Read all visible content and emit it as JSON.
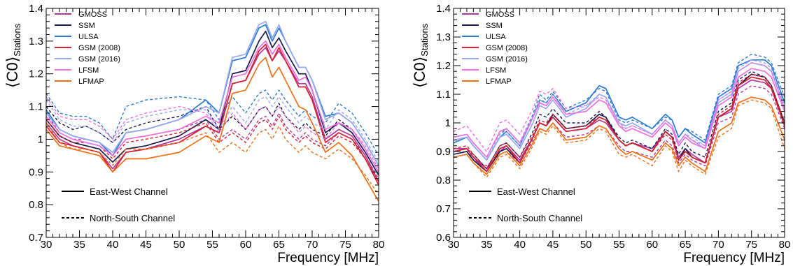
{
  "chart_data": [
    {
      "type": "line",
      "xlabel": "Frequency [MHz]",
      "ylabel": "⟨C0⟩",
      "ylabel_subscript": "Stations",
      "xlim": [
        30,
        80
      ],
      "ylim": [
        0.7,
        1.4
      ],
      "xticks": [
        "30",
        "35",
        "40",
        "45",
        "50",
        "55",
        "60",
        "65",
        "70",
        "75",
        "80"
      ],
      "yticks": [
        "0.7",
        "0.8",
        "0.9",
        "1",
        "1.1",
        "1.2",
        "1.3",
        "1.4"
      ],
      "grid": false,
      "legend": {
        "placement": "top-left",
        "entries": [
          "GMOSS",
          "SSM",
          "ULSA",
          "GSM (2008)",
          "GSM (2016)",
          "LFSM",
          "LFMAP"
        ]
      },
      "style_legend": {
        "solid": "East-West Channel",
        "dashed": "North-South Channel"
      },
      "x": [
        30,
        32,
        34,
        36,
        38,
        40,
        42,
        45,
        50,
        54,
        56,
        58,
        60,
        62,
        63,
        64,
        65,
        66,
        68,
        69,
        70,
        72,
        74,
        76,
        78,
        80
      ],
      "series": [
        {
          "name": "GMOSS",
          "color": "#b0399d",
          "ew": [
            1.05,
            1.0,
            0.98,
            0.97,
            0.96,
            0.91,
            0.96,
            0.97,
            1.0,
            1.04,
            1.02,
            1.17,
            1.18,
            1.26,
            1.28,
            1.24,
            1.27,
            1.24,
            1.17,
            1.17,
            1.13,
            1.0,
            1.03,
            1.01,
            0.95,
            0.87
          ],
          "ns": [
            1.08,
            1.02,
            1.0,
            1.0,
            0.99,
            0.95,
            1.0,
            1.01,
            1.03,
            1.06,
            1.0,
            1.03,
            1.0,
            1.06,
            1.07,
            1.04,
            1.08,
            1.04,
            1.0,
            1.02,
            1.0,
            0.98,
            1.02,
            1.0,
            0.95,
            0.88
          ]
        },
        {
          "name": "SSM",
          "color": "#1a1a4e",
          "ew": [
            1.06,
            1.01,
            0.99,
            0.98,
            0.97,
            0.93,
            0.97,
            0.98,
            1.01,
            1.06,
            1.03,
            1.2,
            1.21,
            1.3,
            1.33,
            1.28,
            1.31,
            1.27,
            1.2,
            1.2,
            1.15,
            1.02,
            1.05,
            1.02,
            0.96,
            0.89
          ],
          "ns": [
            1.1,
            1.05,
            1.03,
            1.04,
            1.02,
            0.99,
            1.03,
            1.05,
            1.07,
            1.1,
            1.03,
            1.07,
            1.03,
            1.09,
            1.1,
            1.07,
            1.11,
            1.07,
            1.03,
            1.05,
            1.03,
            1.01,
            1.06,
            1.03,
            0.97,
            0.9
          ]
        },
        {
          "name": "ULSA",
          "color": "#2a7ad6",
          "ew": [
            1.09,
            1.03,
            1.01,
            1.0,
            0.99,
            0.95,
            1.02,
            1.03,
            1.06,
            1.12,
            1.08,
            1.24,
            1.25,
            1.34,
            1.35,
            1.3,
            1.34,
            1.3,
            1.22,
            1.22,
            1.18,
            1.07,
            1.08,
            1.05,
            0.99,
            0.92
          ],
          "ns": [
            1.14,
            1.08,
            1.07,
            1.07,
            1.05,
            1.0,
            1.1,
            1.12,
            1.13,
            1.12,
            1.06,
            1.13,
            1.08,
            1.14,
            1.15,
            1.12,
            1.15,
            1.12,
            1.07,
            1.09,
            1.07,
            1.05,
            1.11,
            1.08,
            1.02,
            0.95
          ]
        },
        {
          "name": "GSM (2008)",
          "color": "#d42030",
          "ew": [
            1.04,
            0.99,
            0.98,
            0.97,
            0.96,
            0.9,
            0.96,
            0.97,
            0.99,
            1.04,
            1.02,
            1.17,
            1.18,
            1.27,
            1.29,
            1.24,
            1.28,
            1.24,
            1.16,
            1.16,
            1.12,
            0.99,
            1.02,
            1.0,
            0.94,
            0.86
          ],
          "ns": [
            1.06,
            1.01,
            0.99,
            0.99,
            0.98,
            0.94,
            0.99,
            1.0,
            1.02,
            1.05,
            0.99,
            1.02,
            0.99,
            1.05,
            1.06,
            1.03,
            1.07,
            1.03,
            0.99,
            1.01,
            0.99,
            0.97,
            1.01,
            0.99,
            0.94,
            0.87
          ]
        },
        {
          "name": "GSM (2016)",
          "color": "#9aa8f0",
          "ew": [
            1.08,
            1.03,
            1.01,
            1.0,
            0.99,
            0.96,
            1.02,
            1.03,
            1.06,
            1.1,
            1.08,
            1.25,
            1.26,
            1.35,
            1.36,
            1.31,
            1.35,
            1.3,
            1.22,
            1.22,
            1.18,
            1.06,
            1.08,
            1.05,
            0.99,
            0.92
          ],
          "ns": [
            1.12,
            1.06,
            1.04,
            1.04,
            1.02,
            0.99,
            1.05,
            1.07,
            1.09,
            1.09,
            1.03,
            1.1,
            1.05,
            1.12,
            1.13,
            1.1,
            1.13,
            1.1,
            1.05,
            1.07,
            1.05,
            1.03,
            1.09,
            1.06,
            1.0,
            0.93
          ]
        },
        {
          "name": "LFSM",
          "color": "#ee6fe0",
          "ew": [
            1.07,
            1.02,
            1.0,
            0.99,
            0.98,
            0.95,
            1.0,
            1.01,
            1.03,
            1.07,
            1.05,
            1.19,
            1.2,
            1.28,
            1.3,
            1.26,
            1.29,
            1.25,
            1.18,
            1.19,
            1.15,
            1.03,
            1.05,
            1.03,
            0.97,
            0.9
          ],
          "ns": [
            1.13,
            1.07,
            1.06,
            1.06,
            1.04,
            1.0,
            1.06,
            1.08,
            1.1,
            1.08,
            1.02,
            1.08,
            1.03,
            1.09,
            1.1,
            1.07,
            1.1,
            1.07,
            1.02,
            1.04,
            1.02,
            1.0,
            1.05,
            1.03,
            0.98,
            0.91
          ]
        },
        {
          "name": "LFMAP",
          "color": "#ee7018",
          "ew": [
            1.03,
            0.98,
            0.97,
            0.96,
            0.95,
            0.9,
            0.94,
            0.94,
            0.96,
            1.01,
            0.99,
            1.14,
            1.15,
            1.23,
            1.25,
            1.19,
            1.22,
            1.18,
            1.1,
            1.09,
            1.05,
            0.96,
            0.99,
            0.95,
            0.88,
            0.81
          ],
          "ns": [
            1.05,
            0.99,
            0.97,
            0.97,
            0.96,
            0.92,
            0.97,
            0.97,
            0.99,
            1.02,
            0.96,
            0.99,
            0.96,
            1.02,
            1.03,
            1.0,
            1.04,
            1.0,
            0.96,
            0.98,
            0.96,
            0.94,
            0.97,
            0.94,
            0.89,
            0.83
          ]
        }
      ]
    },
    {
      "type": "line",
      "xlabel": "Frequency [MHz]",
      "ylabel": "⟨C0⟩",
      "ylabel_subscript": "Stations",
      "xlim": [
        30,
        80
      ],
      "ylim": [
        0.6,
        1.4
      ],
      "xticks": [
        "30",
        "35",
        "40",
        "45",
        "50",
        "55",
        "60",
        "65",
        "70",
        "75",
        "80"
      ],
      "yticks": [
        "0.6",
        "0.7",
        "0.8",
        "0.9",
        "1",
        "1.1",
        "1.2",
        "1.3",
        "1.4"
      ],
      "grid": false,
      "legend": {
        "placement": "top-left",
        "entries": [
          "GMOSS",
          "SSM",
          "ULSA",
          "GSM (2008)",
          "GSM (2016)",
          "LFSM",
          "LFMAP"
        ]
      },
      "style_legend": {
        "solid": "East-West Channel",
        "dashed": "North-South Channel"
      },
      "x": [
        30,
        32,
        33,
        35,
        37,
        38,
        40,
        42,
        43,
        44,
        45,
        47,
        50,
        52,
        53,
        55,
        56,
        57,
        60,
        62,
        63,
        64,
        65,
        66,
        68,
        70,
        72,
        73,
        75,
        77,
        78,
        80
      ],
      "series": [
        {
          "name": "GMOSS",
          "color": "#b0399d",
          "ew": [
            0.91,
            0.91,
            0.88,
            0.84,
            0.9,
            0.92,
            0.87,
            0.95,
            1.0,
            0.99,
            1.02,
            0.97,
            0.98,
            1.01,
            1.0,
            0.94,
            0.92,
            0.93,
            0.91,
            0.97,
            0.95,
            0.88,
            0.91,
            0.89,
            0.86,
            1.02,
            1.04,
            1.12,
            1.15,
            1.14,
            1.12,
            1.0
          ],
          "ns": [
            0.9,
            0.91,
            0.87,
            0.85,
            0.89,
            0.9,
            0.86,
            0.94,
            0.98,
            0.97,
            1.0,
            0.95,
            0.96,
            0.99,
            0.98,
            0.92,
            0.9,
            0.9,
            0.88,
            0.94,
            0.92,
            0.86,
            0.89,
            0.87,
            0.85,
            1.0,
            1.02,
            1.1,
            1.13,
            1.12,
            1.1,
            0.98
          ]
        },
        {
          "name": "SSM",
          "color": "#1a1a4e",
          "ew": [
            0.89,
            0.9,
            0.87,
            0.83,
            0.9,
            0.91,
            0.86,
            0.95,
            1.0,
            0.99,
            1.03,
            0.98,
            0.99,
            1.03,
            1.02,
            0.94,
            0.92,
            0.93,
            0.9,
            0.97,
            0.95,
            0.87,
            0.91,
            0.88,
            0.86,
            1.02,
            1.05,
            1.13,
            1.17,
            1.16,
            1.13,
            1.0
          ],
          "ns": [
            0.9,
            0.91,
            0.89,
            0.84,
            0.92,
            0.93,
            0.88,
            0.97,
            1.03,
            1.02,
            1.05,
            1.0,
            1.0,
            1.04,
            1.02,
            0.95,
            0.93,
            0.94,
            0.91,
            0.98,
            0.96,
            0.89,
            0.93,
            0.9,
            0.88,
            1.04,
            1.07,
            1.15,
            1.18,
            1.16,
            1.13,
            1.0
          ]
        },
        {
          "name": "ULSA",
          "color": "#2a7ad6",
          "ew": [
            0.93,
            0.95,
            0.92,
            0.87,
            0.95,
            0.97,
            0.92,
            1.02,
            1.08,
            1.07,
            1.1,
            1.04,
            1.07,
            1.13,
            1.12,
            1.02,
            1.01,
            1.02,
            0.98,
            1.03,
            1.01,
            0.95,
            0.98,
            0.96,
            0.93,
            1.09,
            1.12,
            1.2,
            1.22,
            1.22,
            1.2,
            1.07
          ],
          "ns": [
            0.95,
            0.96,
            0.93,
            0.88,
            0.96,
            0.98,
            0.93,
            1.03,
            1.1,
            1.08,
            1.11,
            1.05,
            1.08,
            1.12,
            1.11,
            1.01,
            1.0,
            1.01,
            0.98,
            1.02,
            1.01,
            0.95,
            0.98,
            0.97,
            0.94,
            1.1,
            1.13,
            1.21,
            1.24,
            1.23,
            1.21,
            1.09
          ]
        },
        {
          "name": "GSM (2008)",
          "color": "#d42030",
          "ew": [
            0.9,
            0.91,
            0.88,
            0.83,
            0.91,
            0.92,
            0.86,
            0.95,
            1.0,
            0.99,
            1.02,
            0.97,
            0.98,
            1.02,
            1.01,
            0.94,
            0.92,
            0.93,
            0.9,
            0.97,
            0.95,
            0.87,
            0.9,
            0.88,
            0.86,
            1.02,
            1.05,
            1.13,
            1.16,
            1.15,
            1.12,
            0.99
          ],
          "ns": [
            0.91,
            0.92,
            0.89,
            0.84,
            0.92,
            0.93,
            0.88,
            0.96,
            1.01,
            1.0,
            1.03,
            0.98,
            0.99,
            1.02,
            1.01,
            0.94,
            0.92,
            0.93,
            0.9,
            0.96,
            0.94,
            0.87,
            0.9,
            0.88,
            0.86,
            1.03,
            1.06,
            1.14,
            1.17,
            1.16,
            1.13,
            1.0
          ]
        },
        {
          "name": "GSM (2016)",
          "color": "#9aa8f0",
          "ew": [
            0.94,
            0.95,
            0.92,
            0.87,
            0.95,
            0.96,
            0.91,
            1.0,
            1.06,
            1.05,
            1.08,
            1.02,
            1.05,
            1.1,
            1.09,
            1.0,
            0.99,
            1.0,
            0.96,
            1.01,
            0.99,
            0.93,
            0.96,
            0.94,
            0.91,
            1.07,
            1.1,
            1.18,
            1.21,
            1.2,
            1.18,
            1.05
          ],
          "ns": [
            0.95,
            0.96,
            0.93,
            0.88,
            0.96,
            0.97,
            0.92,
            1.02,
            1.08,
            1.07,
            1.1,
            1.03,
            1.06,
            1.1,
            1.09,
            0.99,
            0.98,
            0.99,
            0.96,
            1.01,
            0.99,
            0.93,
            0.96,
            0.95,
            0.92,
            1.08,
            1.11,
            1.19,
            1.22,
            1.21,
            1.19,
            1.06
          ]
        },
        {
          "name": "LFSM",
          "color": "#ee6fe0",
          "ew": [
            0.95,
            0.96,
            0.93,
            0.88,
            0.97,
            0.98,
            0.93,
            1.02,
            1.07,
            1.06,
            1.09,
            1.03,
            1.04,
            1.08,
            1.07,
            0.99,
            0.97,
            0.98,
            0.95,
            1.0,
            0.98,
            0.92,
            0.95,
            0.93,
            0.91,
            1.06,
            1.09,
            1.16,
            1.19,
            1.18,
            1.16,
            1.04
          ],
          "ns": [
            0.97,
            0.99,
            0.96,
            0.9,
            1.0,
            1.01,
            0.96,
            1.05,
            1.11,
            1.1,
            1.12,
            1.05,
            1.06,
            1.09,
            1.08,
            1.0,
            0.98,
            0.99,
            0.96,
            1.01,
            0.99,
            0.93,
            0.96,
            0.94,
            0.92,
            1.08,
            1.11,
            1.18,
            1.21,
            1.2,
            1.18,
            1.05
          ]
        },
        {
          "name": "LFMAP",
          "color": "#ee7018",
          "ew": [
            0.88,
            0.89,
            0.86,
            0.82,
            0.89,
            0.9,
            0.85,
            0.93,
            0.98,
            0.97,
            1.0,
            0.94,
            0.95,
            0.99,
            0.98,
            0.91,
            0.89,
            0.9,
            0.87,
            0.93,
            0.91,
            0.85,
            0.88,
            0.86,
            0.83,
            0.97,
            1.0,
            1.07,
            1.09,
            1.08,
            1.06,
            0.94
          ],
          "ns": [
            0.88,
            0.89,
            0.86,
            0.81,
            0.88,
            0.89,
            0.84,
            0.92,
            0.97,
            0.96,
            0.99,
            0.93,
            0.94,
            0.98,
            0.97,
            0.89,
            0.88,
            0.89,
            0.85,
            0.92,
            0.9,
            0.83,
            0.87,
            0.85,
            0.82,
            0.95,
            0.98,
            1.06,
            1.08,
            1.07,
            1.05,
            0.91
          ]
        }
      ]
    }
  ]
}
